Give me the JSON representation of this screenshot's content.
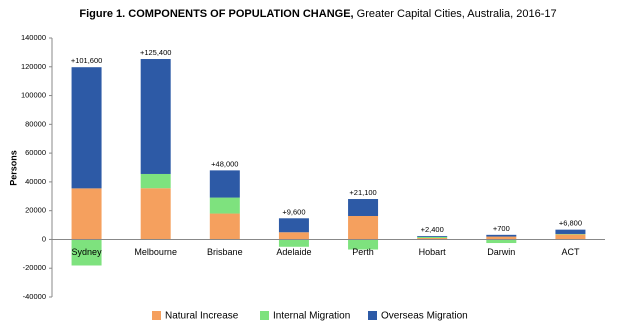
{
  "chart_data": {
    "type": "stacked_bar",
    "title": "Figure 1. COMPONENTS OF POPULATION CHANGE,",
    "subtitle": "Greater Capital Cities, Australia, 2016-17",
    "y_label": "Persons",
    "categories": [
      "Sydney",
      "Melbourne",
      "Brisbane",
      "Adelaide",
      "Perth",
      "Hobart",
      "Darwin",
      "ACT"
    ],
    "series": [
      {
        "name": "Natural Increase",
        "color": "#f5a05e",
        "values": [
          35500,
          35600,
          18000,
          5000,
          16300,
          1000,
          2000,
          3500
        ]
      },
      {
        "name": "Internal Migration",
        "color": "#7ee27e",
        "values": [
          -18100,
          9900,
          11100,
          -5100,
          -7000,
          800,
          -2500,
          300
        ]
      },
      {
        "name": "Overseas Migration",
        "color": "#2d5aa6",
        "values": [
          84200,
          79900,
          18900,
          9700,
          11800,
          600,
          1200,
          3000
        ]
      }
    ],
    "totals": {
      "values": [
        101600,
        125400,
        48000,
        9600,
        21100,
        2400,
        700,
        6800
      ],
      "value_labels": [
        "+101,600",
        "+125,400",
        "+48,000",
        "+9,600",
        "+21,100",
        "+2,400",
        "+700",
        "+6,800"
      ]
    },
    "ylim": [
      -40000,
      140000
    ],
    "yticks": [
      -40000,
      -20000,
      0,
      20000,
      40000,
      60000,
      80000,
      100000,
      120000,
      140000
    ],
    "grid": false
  }
}
